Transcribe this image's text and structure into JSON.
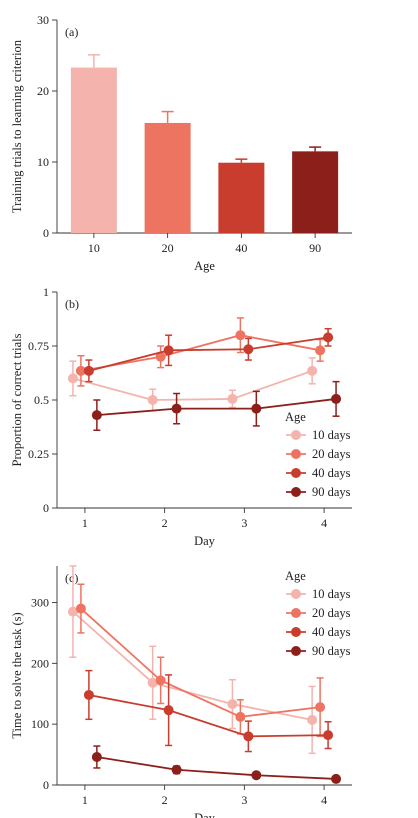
{
  "chart_data": [
    {
      "type": "bar",
      "panel_label": "(a)",
      "xlabel": "Age",
      "ylabel": "Training trials to learning criterion",
      "categories": [
        "10",
        "20",
        "40",
        "90"
      ],
      "values": [
        23.3,
        15.5,
        9.9,
        11.5
      ],
      "errors": [
        1.8,
        1.6,
        0.5,
        0.6
      ],
      "ylim": [
        0,
        30
      ],
      "yticks": [
        "0",
        "10",
        "20",
        "30"
      ],
      "colors": [
        "#f5b3ad",
        "#ee7462",
        "#c83d2e",
        "#8c1f1a"
      ]
    },
    {
      "type": "line",
      "panel_label": "(b)",
      "xlabel": "Day",
      "ylabel": "Proportion of correct trials",
      "x": [
        1,
        2,
        3,
        4
      ],
      "xticks": [
        "1",
        "2",
        "3",
        "4"
      ],
      "ylim": [
        0,
        1
      ],
      "yticks": [
        "0",
        "0.25",
        "0.5",
        "0.75",
        "1"
      ],
      "legend_title": "Age",
      "legend_position": "lower-right",
      "series": [
        {
          "name": "10 days",
          "color": "#f5b3ad",
          "values": [
            0.6,
            0.5,
            0.505,
            0.635
          ],
          "errors": [
            0.08,
            0.05,
            0.04,
            0.06
          ],
          "offset": -0.15
        },
        {
          "name": "20 days",
          "color": "#ee7462",
          "values": [
            0.635,
            0.7,
            0.8,
            0.73
          ],
          "errors": [
            0.07,
            0.05,
            0.08,
            0.05
          ],
          "offset": -0.05
        },
        {
          "name": "40 days",
          "color": "#c83d2e",
          "values": [
            0.635,
            0.73,
            0.735,
            0.79
          ],
          "errors": [
            0.05,
            0.07,
            0.05,
            0.04
          ],
          "offset": 0.05
        },
        {
          "name": "90 days",
          "color": "#8c1f1a",
          "values": [
            0.43,
            0.46,
            0.46,
            0.505
          ],
          "errors": [
            0.07,
            0.07,
            0.08,
            0.08
          ],
          "offset": 0.15
        }
      ]
    },
    {
      "type": "line",
      "panel_label": "(c)",
      "xlabel": "Day",
      "ylabel": "Time to solve the task (s)",
      "x": [
        1,
        2,
        3,
        4
      ],
      "xticks": [
        "1",
        "2",
        "3",
        "4"
      ],
      "ylim": [
        0,
        360
      ],
      "yticks": [
        "0",
        "100",
        "200",
        "300"
      ],
      "legend_title": "Age",
      "legend_position": "top-right",
      "series": [
        {
          "name": "10 days",
          "color": "#f5b3ad",
          "values": [
            285,
            168,
            133,
            107
          ],
          "errors": [
            75,
            60,
            40,
            55
          ],
          "offset": -0.15
        },
        {
          "name": "20 days",
          "color": "#ee7462",
          "values": [
            290,
            172,
            112,
            128
          ],
          "errors": [
            40,
            38,
            28,
            48
          ],
          "offset": -0.05
        },
        {
          "name": "40 days",
          "color": "#c83d2e",
          "values": [
            148,
            123,
            80,
            82
          ],
          "errors": [
            40,
            58,
            25,
            22
          ],
          "offset": 0.05
        },
        {
          "name": "90 days",
          "color": "#8c1f1a",
          "values": [
            46,
            25,
            16,
            10
          ],
          "errors": [
            18,
            6,
            4,
            3
          ],
          "offset": 0.15
        }
      ]
    }
  ]
}
